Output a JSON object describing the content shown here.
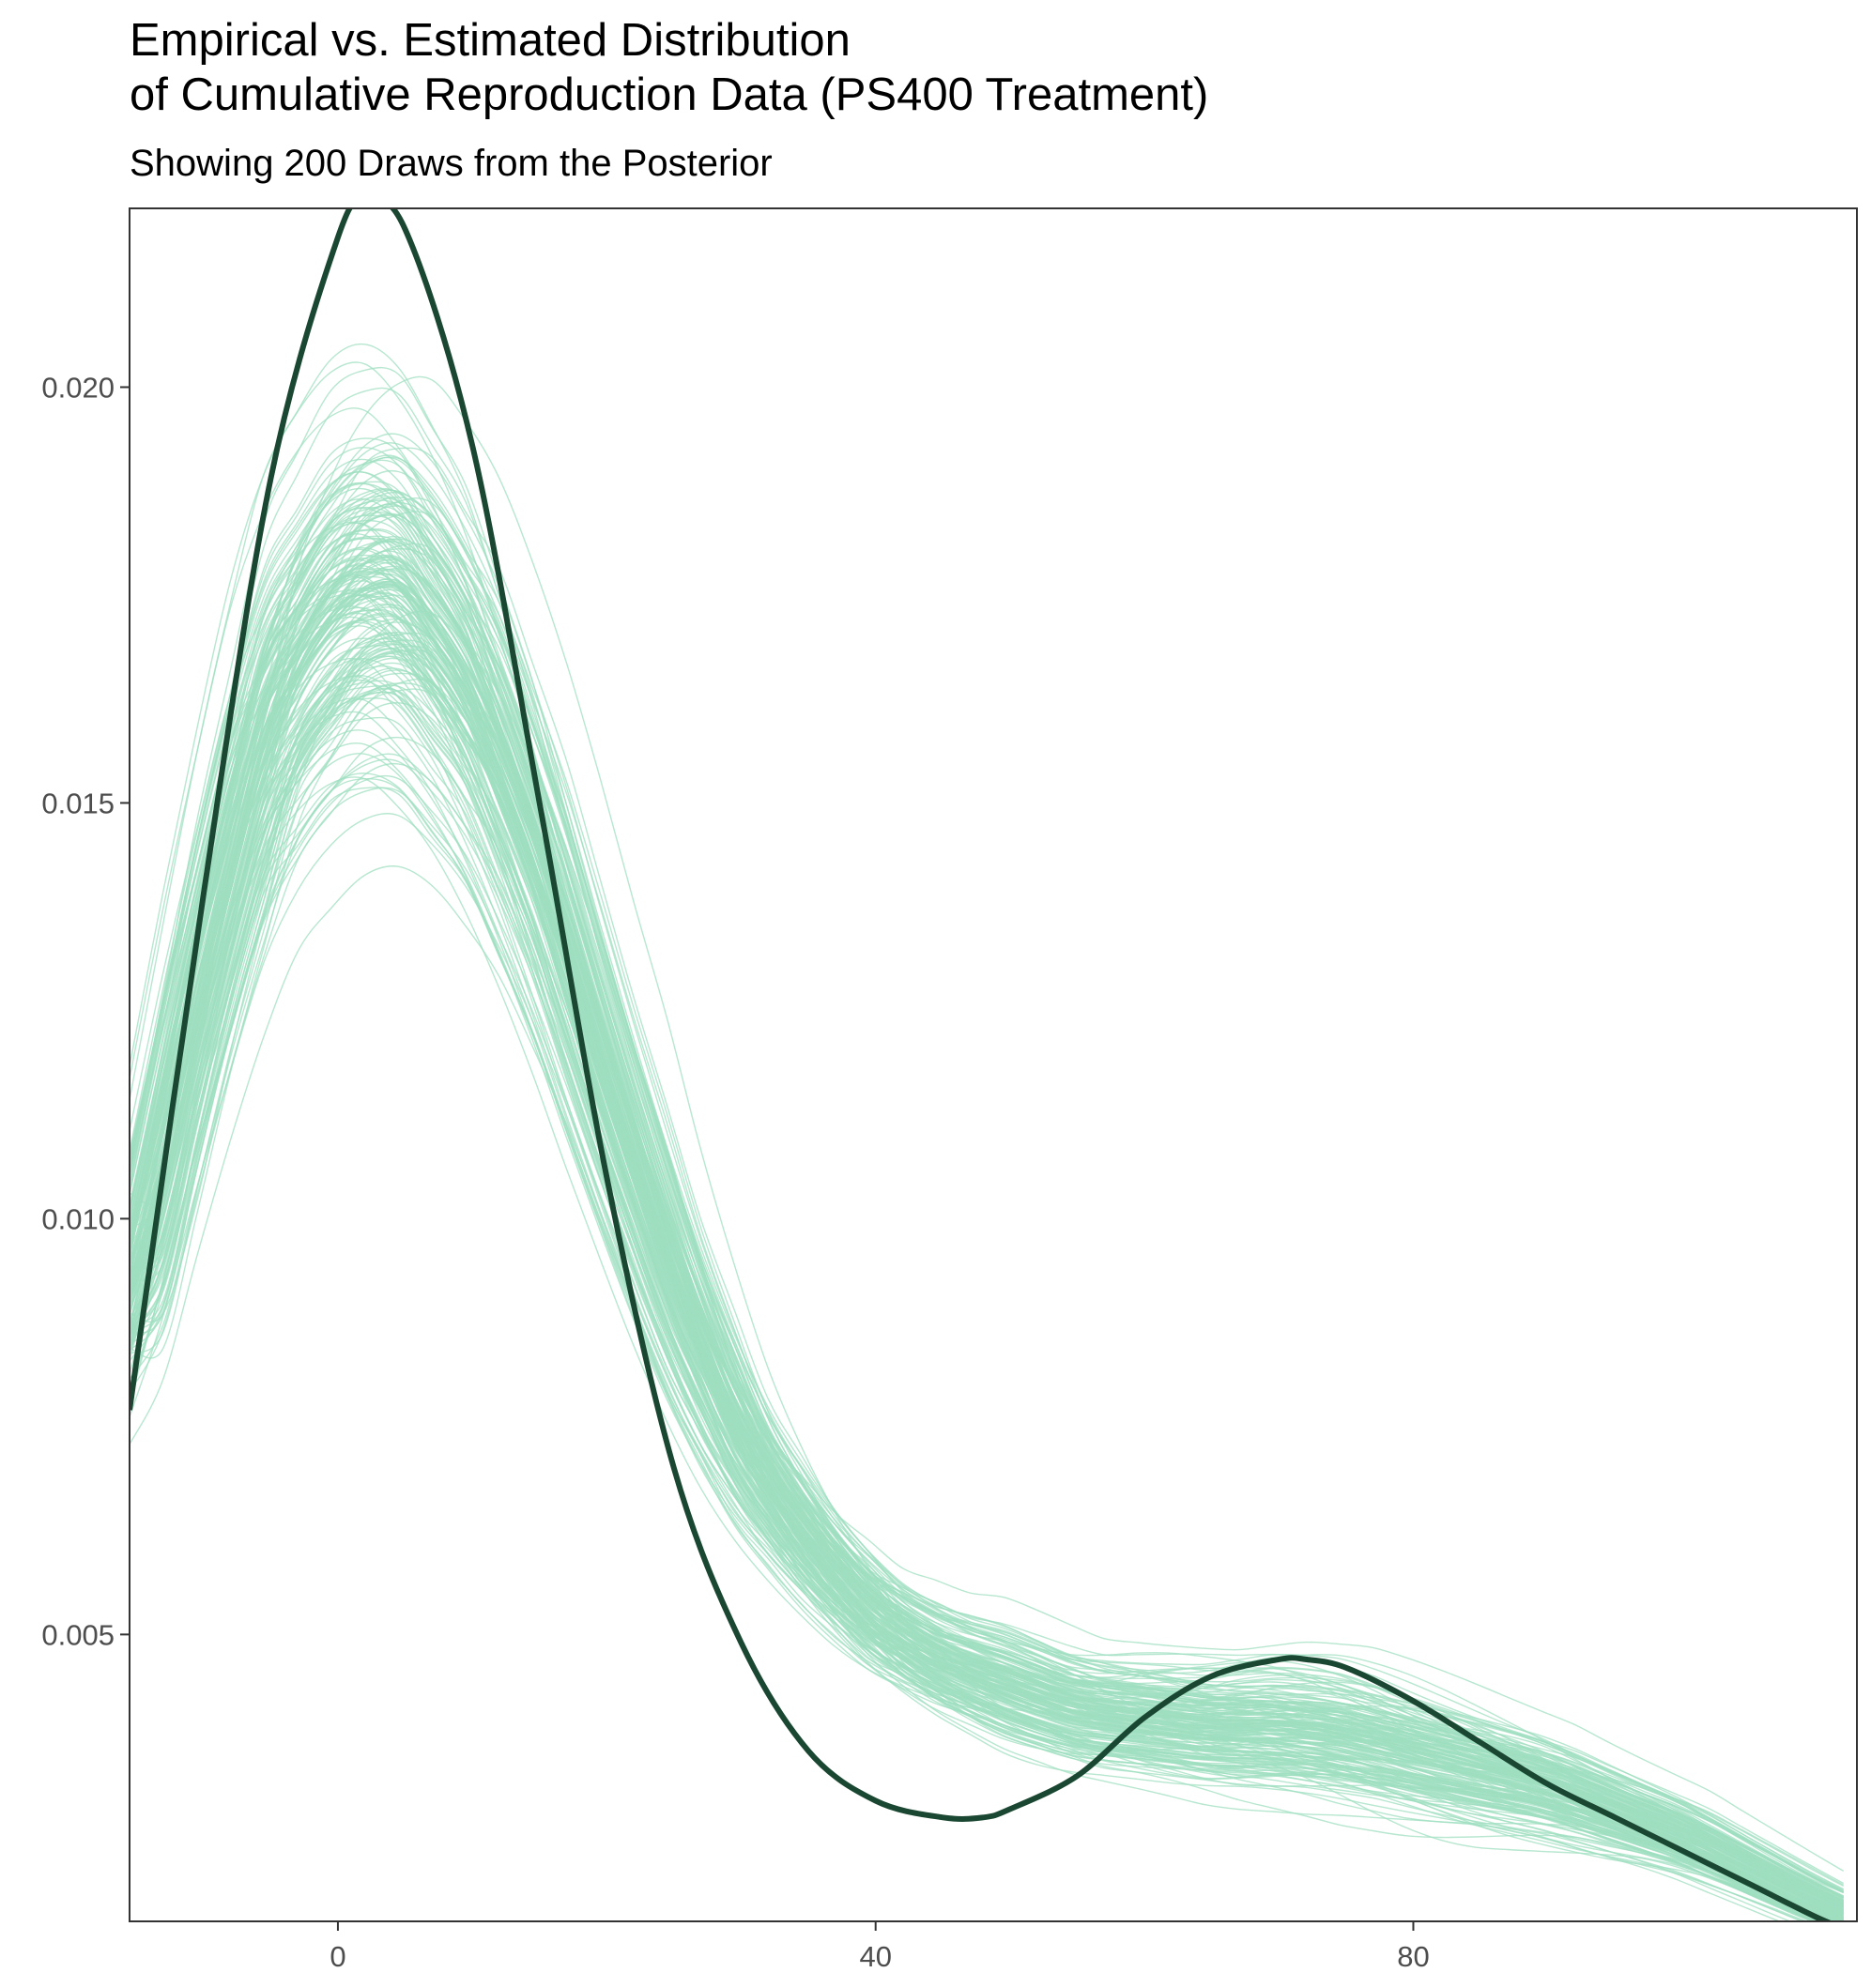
{
  "title": {
    "line1": "Empirical vs. Estimated Distribution",
    "line2": "of Cumulative Reproduction Data (PS400 Treatment)",
    "subtitle": "Showing 200 Draws from the Posterior"
  },
  "colors": {
    "draws": "#9fdfc0",
    "empirical": "#1a4731",
    "axis": "#333333",
    "tick_label": "#4d4d4d",
    "background": "#ffffff"
  },
  "chart_data": {
    "type": "line",
    "title": "Empirical vs. Estimated Distribution of Cumulative Reproduction Data (PS400 Treatment)",
    "subtitle": "Showing 200 Draws from the Posterior",
    "xlabel": "",
    "ylabel": "",
    "xlim": [
      -15.5,
      113
    ],
    "ylim": [
      0.00155,
      0.02215
    ],
    "x_ticks": [
      0,
      40,
      80
    ],
    "x_tick_labels": [
      "0",
      "40",
      "80"
    ],
    "y_ticks": [
      0.005,
      0.01,
      0.015,
      0.02
    ],
    "y_tick_labels": [
      "0.005",
      "0.010",
      "0.015",
      "0.020"
    ],
    "grid": false,
    "legend": "none",
    "num_draws": 200,
    "empirical_density": {
      "x": [
        -15.5,
        -10,
        -5,
        0,
        2,
        5,
        10,
        15,
        20,
        25,
        30,
        35,
        40,
        45,
        48,
        50,
        55,
        60,
        65,
        70,
        72,
        75,
        80,
        85,
        90,
        95,
        100,
        105,
        110,
        113
      ],
      "y": [
        0.0077,
        0.0139,
        0.0189,
        0.0218,
        0.0222,
        0.0219,
        0.0193,
        0.015,
        0.0105,
        0.007,
        0.0049,
        0.0036,
        0.003,
        0.0028,
        0.0028,
        0.0029,
        0.0033,
        0.004,
        0.0045,
        0.0047,
        0.0047,
        0.0046,
        0.0042,
        0.0037,
        0.0032,
        0.0028,
        0.0024,
        0.002,
        0.0016,
        0.0014
      ]
    },
    "posterior_draws_mean": {
      "x": [
        -15.5,
        -10,
        -5,
        0,
        3,
        5,
        10,
        15,
        20,
        25,
        30,
        35,
        40,
        45,
        50,
        55,
        60,
        65,
        70,
        75,
        80,
        85,
        90,
        95,
        100,
        105,
        110,
        113
      ],
      "y": [
        0.009,
        0.013,
        0.0161,
        0.0174,
        0.0176,
        0.0175,
        0.0163,
        0.0142,
        0.0116,
        0.0092,
        0.0073,
        0.0061,
        0.0052,
        0.0047,
        0.0044,
        0.0041,
        0.004,
        0.0039,
        0.0039,
        0.0038,
        0.0036,
        0.0034,
        0.0032,
        0.0029,
        0.0026,
        0.0022,
        0.0018,
        0.0016
      ]
    }
  }
}
